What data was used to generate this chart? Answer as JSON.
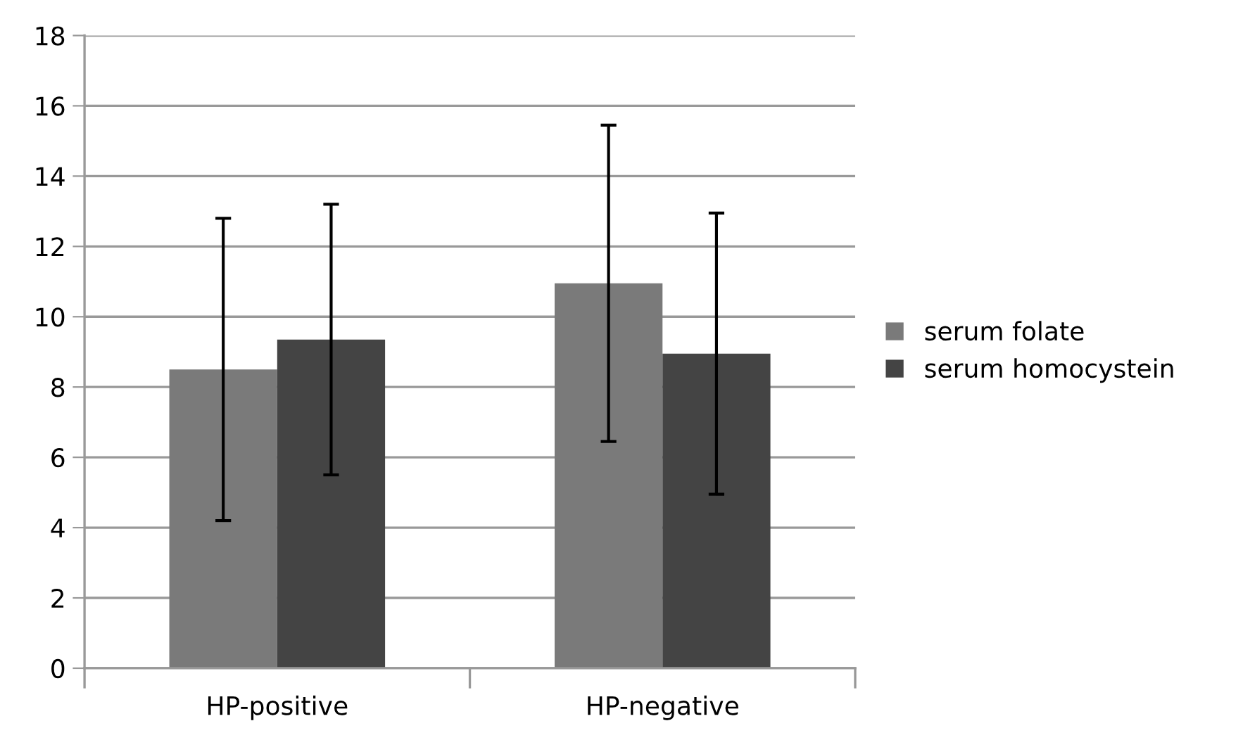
{
  "chart_data": {
    "type": "bar",
    "categories": [
      "HP-positive",
      "HP-negative"
    ],
    "series": [
      {
        "name": "serum folate",
        "color": "#7a7a7a",
        "values": [
          8.5,
          10.95
        ],
        "errors": [
          4.3,
          4.5
        ]
      },
      {
        "name": "serum homocystein",
        "color": "#444444",
        "values": [
          9.35,
          8.95
        ],
        "errors": [
          3.85,
          4.0
        ]
      }
    ],
    "ylim": [
      0,
      18
    ],
    "yticks": [
      0,
      2,
      4,
      6,
      8,
      10,
      12,
      14,
      16,
      18
    ],
    "grid": "y",
    "legend": "right"
  }
}
